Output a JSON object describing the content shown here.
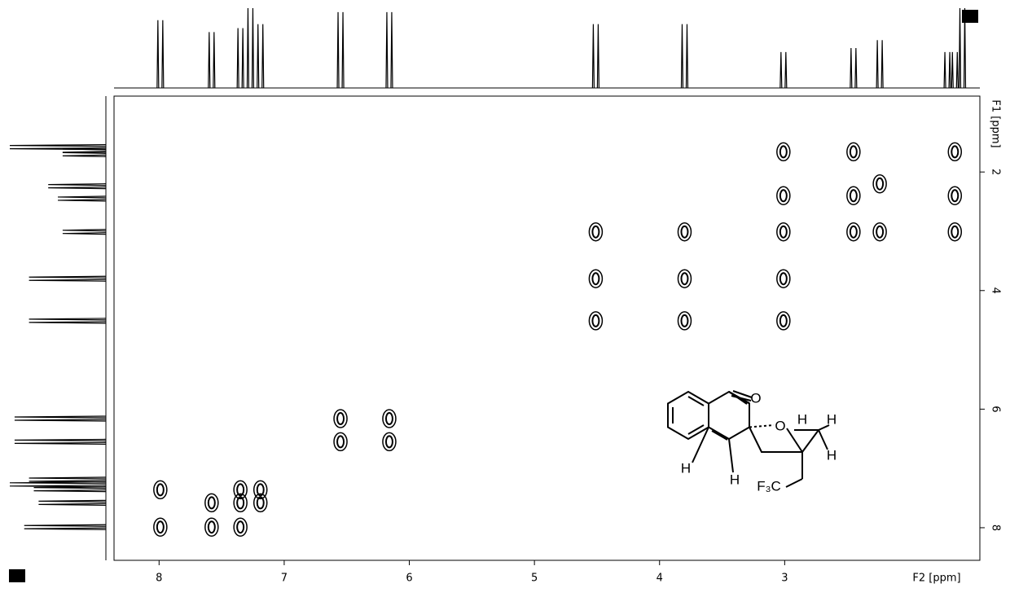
{
  "chart_data": {
    "type": "contour",
    "x_label": "F2 [ppm]",
    "y_label": "F1 [ppm]",
    "xlim": [
      8.36,
      1.44
    ],
    "ylim": [
      8.55,
      0.72
    ],
    "xticks": [
      8,
      7,
      6,
      5,
      4,
      3
    ],
    "yticks": [
      2,
      4,
      6,
      8
    ],
    "color": "#000000",
    "projection": {
      "shifts": [
        7.99,
        7.58,
        7.35,
        7.27,
        7.19,
        6.55,
        6.16,
        4.51,
        3.8,
        3.01,
        2.45,
        2.24,
        1.7,
        1.64,
        1.58
      ],
      "heights": [
        85,
        70,
        75,
        100,
        80,
        95,
        95,
        80,
        80,
        45,
        50,
        60,
        45,
        45,
        100
      ]
    },
    "cross_peaks": {
      "x": [
        7.99,
        7.35,
        7.19,
        7.58,
        7.35,
        7.19,
        7.99,
        7.58,
        7.35,
        6.55,
        6.16,
        6.55,
        6.16,
        4.51,
        3.8,
        3.01,
        4.51,
        3.8,
        3.01,
        4.51,
        3.8,
        3.01,
        2.45,
        2.24,
        1.64,
        3.01,
        2.45,
        2.24,
        1.64,
        3.01,
        2.45,
        1.64
      ],
      "y": [
        7.36,
        7.36,
        7.36,
        7.58,
        7.58,
        7.58,
        7.99,
        7.99,
        7.99,
        6.16,
        6.16,
        6.55,
        6.55,
        4.51,
        4.51,
        4.51,
        3.8,
        3.8,
        3.8,
        3.01,
        3.01,
        3.01,
        3.01,
        3.01,
        3.01,
        2.4,
        2.4,
        2.2,
        2.4,
        1.66,
        1.66,
        1.66
      ]
    },
    "structure_labels": [
      "O",
      "O",
      "H",
      "H",
      "H",
      "H",
      "H",
      "F₃C"
    ]
  }
}
